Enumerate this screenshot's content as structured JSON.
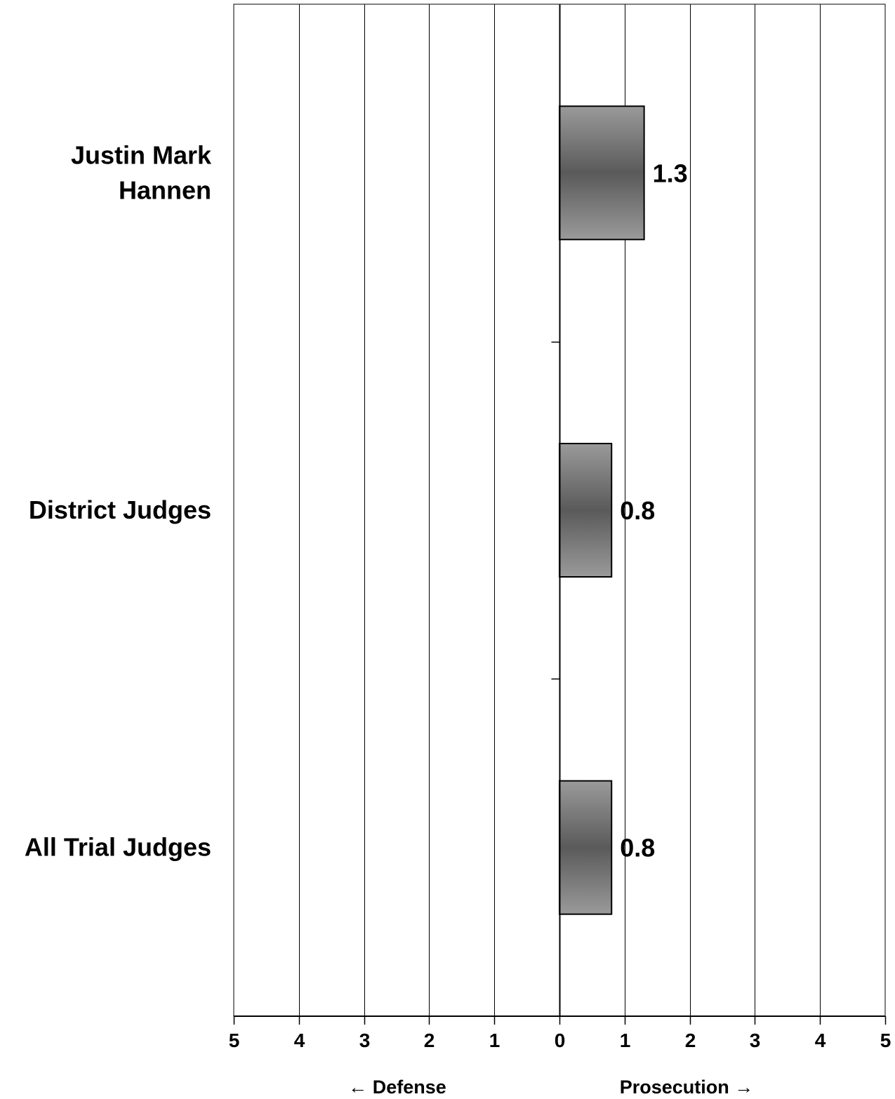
{
  "chart_data": {
    "type": "bar",
    "orientation": "horizontal",
    "categories": [
      "Justin Mark Hannen",
      "District Judges",
      "All Trial Judges"
    ],
    "category_lines": [
      [
        "Justin Mark",
        "Hannen"
      ],
      [
        "District Judges"
      ],
      [
        "All Trial Judges"
      ]
    ],
    "values": [
      1.3,
      0.8,
      0.8
    ],
    "data_labels": [
      "1.3",
      "0.8",
      "0.8"
    ],
    "xlim": [
      -5,
      5
    ],
    "x_tick_values": [
      -5,
      -4,
      -3,
      -2,
      -1,
      0,
      1,
      2,
      3,
      4,
      5
    ],
    "x_tick_labels": [
      "5",
      "4",
      "3",
      "2",
      "1",
      "0",
      "1",
      "2",
      "3",
      "4",
      "5"
    ],
    "direction_labels": {
      "negative": "← Defense",
      "positive": "Prosecution →"
    },
    "grid": "vertical",
    "bar_fill": "gradient",
    "colors": {
      "bar_outer": "#9a9a9a",
      "bar_center": "#5a5a5a",
      "bar_border": "#000000",
      "axis": "#000000",
      "grid": "#000000",
      "text": "#000000"
    }
  }
}
